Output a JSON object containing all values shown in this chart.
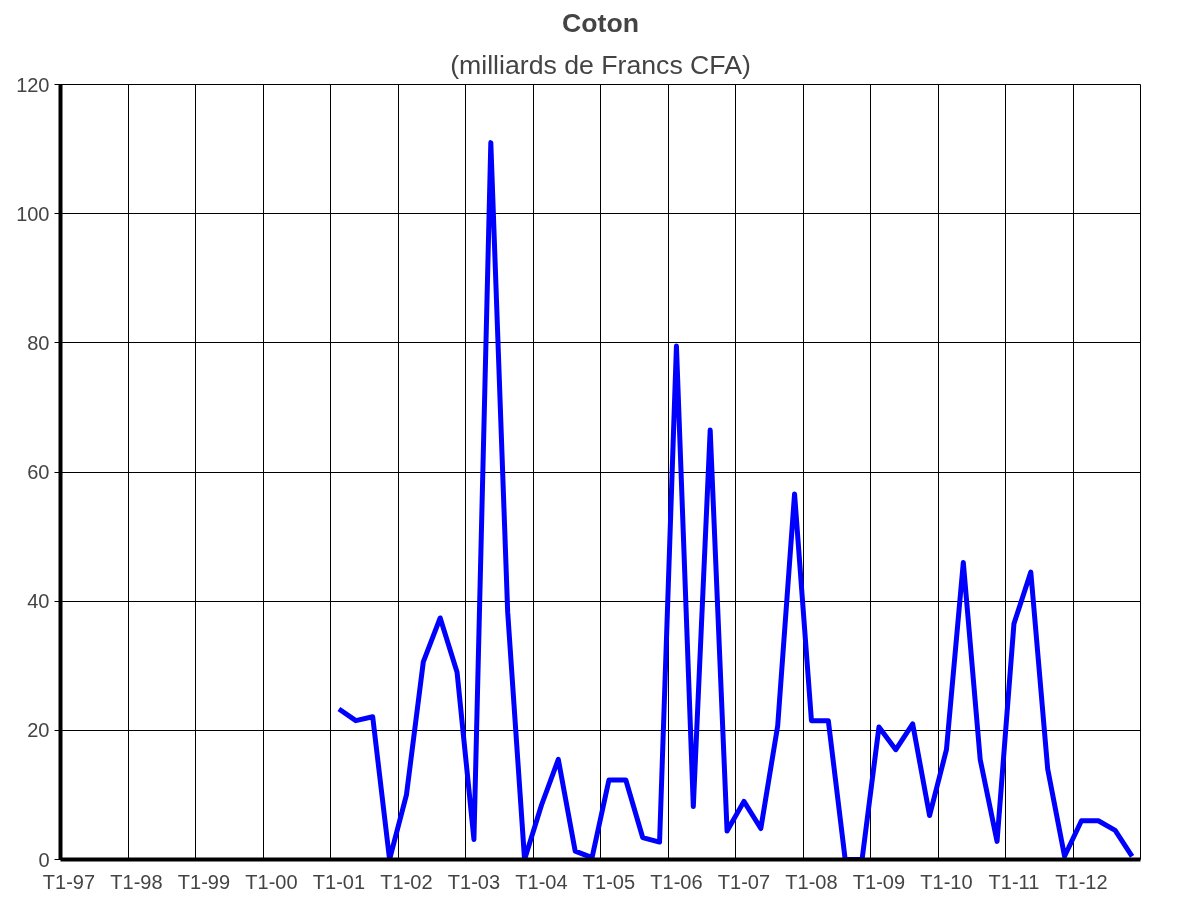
{
  "chart_data": {
    "type": "line",
    "title": "Coton",
    "subtitle": "(milliards de Francs CFA)",
    "categories": [
      "T1-97",
      null,
      null,
      null,
      "T1-98",
      null,
      null,
      null,
      "T1-99",
      null,
      null,
      null,
      "T1-00",
      null,
      null,
      null,
      "T1-01",
      null,
      null,
      null,
      "T1-02",
      null,
      null,
      null,
      "T1-03",
      null,
      null,
      null,
      "T1-04",
      null,
      null,
      null,
      "T1-05",
      null,
      null,
      null,
      "T1-06",
      null,
      null,
      null,
      "T1-07",
      null,
      null,
      null,
      "T1-08",
      null,
      null,
      null,
      "T1-09",
      null,
      null,
      null,
      "T1-10",
      null,
      null,
      null,
      "T1-11",
      null,
      null,
      null,
      "T1-12",
      null,
      null,
      null
    ],
    "series": [
      {
        "color": "#0000ff",
        "values": [
          null,
          null,
          null,
          null,
          null,
          null,
          null,
          null,
          null,
          null,
          null,
          null,
          null,
          null,
          null,
          null,
          23.3,
          21.5,
          22.1,
          0,
          10,
          30.6,
          37.4,
          29,
          3.1,
          111,
          38.3,
          0,
          8.4,
          15.5,
          1.3,
          0.3,
          12.3,
          12.3,
          3.4,
          2.7,
          79.5,
          8.2,
          66.5,
          4.4,
          9,
          4.8,
          20.7,
          56.6,
          21.5,
          21.5,
          0,
          0,
          20.5,
          17,
          21,
          6.8,
          17,
          46,
          15.5,
          2.8,
          36.5,
          44.5,
          14,
          0.5,
          6,
          6,
          4.5,
          0.5
        ]
      }
    ],
    "ylim": [
      0,
      120
    ],
    "yticks": [
      0,
      20,
      40,
      60,
      80,
      100,
      120
    ],
    "grid": true,
    "marker": "none",
    "line_style": "solid"
  }
}
